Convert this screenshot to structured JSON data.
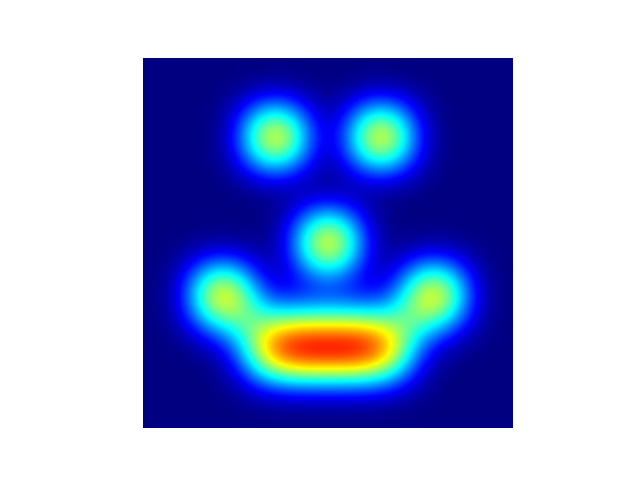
{
  "chart_data": {
    "type": "heatmap",
    "title": "",
    "xlabel": "",
    "ylabel": "",
    "axes_visible": false,
    "grid": false,
    "legend": "none",
    "colormap": "jet",
    "value_range": [
      0,
      1
    ],
    "interpolation": "smooth",
    "grid_size": [
      14,
      14
    ],
    "z": [
      [
        0,
        0,
        0,
        0,
        0,
        0,
        0,
        0,
        0,
        0,
        0,
        0,
        0,
        0
      ],
      [
        0,
        0,
        0,
        0,
        0,
        0,
        0,
        0,
        0,
        0,
        0,
        0,
        0,
        0
      ],
      [
        0,
        0,
        0,
        0,
        0.8,
        0.8,
        0,
        0,
        0.8,
        0.8,
        0,
        0,
        0,
        0
      ],
      [
        0,
        0,
        0,
        0,
        0.8,
        0.8,
        0,
        0,
        0.8,
        0.8,
        0,
        0,
        0,
        0
      ],
      [
        0,
        0,
        0,
        0,
        0,
        0,
        0,
        0,
        0,
        0,
        0,
        0,
        0,
        0
      ],
      [
        0,
        0,
        0,
        0,
        0,
        0,
        0,
        0,
        0,
        0,
        0,
        0,
        0,
        0
      ],
      [
        0,
        0,
        0,
        0,
        0,
        0,
        0.8,
        0.8,
        0,
        0,
        0,
        0,
        0,
        0
      ],
      [
        0,
        0,
        0,
        0,
        0,
        0,
        0.8,
        0.8,
        0,
        0,
        0,
        0,
        0,
        0
      ],
      [
        0,
        0,
        0.8,
        0.8,
        0,
        0,
        0,
        0,
        0,
        0,
        0.8,
        0.8,
        0,
        0
      ],
      [
        0,
        0,
        0.8,
        0.8,
        0.2,
        0.2,
        0.2,
        0.2,
        0.2,
        0.2,
        0.8,
        0.8,
        0,
        0
      ],
      [
        0,
        0,
        0,
        0.2,
        0.8,
        1,
        1,
        1,
        1,
        0.8,
        0.2,
        0,
        0,
        0
      ],
      [
        0,
        0,
        0,
        0,
        0.8,
        1,
        1,
        1,
        1,
        0.8,
        0,
        0,
        0,
        0
      ],
      [
        0,
        0,
        0,
        0,
        0,
        0,
        0,
        0,
        0,
        0,
        0,
        0,
        0,
        0
      ],
      [
        0,
        0,
        0,
        0,
        0,
        0,
        0,
        0,
        0,
        0,
        0,
        0,
        0,
        0
      ]
    ]
  }
}
